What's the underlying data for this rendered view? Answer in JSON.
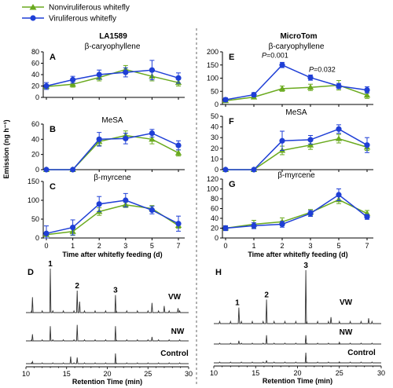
{
  "legend": {
    "nonviruliferous": "Nonviruliferous whitefly",
    "viruliferous": "Viruliferous whitefly"
  },
  "colors": {
    "nonviruliferous": "#6aaa1e",
    "viruliferous": "#1f3fd6",
    "chromatogram": "#333333"
  },
  "groups": {
    "left": "LA1589",
    "right": "MicroTom"
  },
  "ylabel": "Emission (ng h⁻¹)",
  "xlabel": "Time after whitefly feeding (d)",
  "chart_data": [
    {
      "type": "line",
      "panel": "A",
      "compound": "β-caryophyllene",
      "group": "LA1589",
      "categories": [
        "0",
        "1",
        "2",
        "3",
        "5",
        "7"
      ],
      "ylim": [
        0,
        80
      ],
      "yticks": [
        0,
        20,
        40,
        60,
        80
      ],
      "series": [
        {
          "name": "Nonviruliferous whitefly",
          "values": [
            19,
            23,
            35,
            49,
            37,
            26
          ],
          "errors": [
            3,
            5,
            6,
            7,
            8,
            6
          ]
        },
        {
          "name": "Viruliferous whitefly",
          "values": [
            20,
            31,
            40,
            44,
            48,
            34
          ],
          "errors": [
            6,
            6,
            8,
            8,
            17,
            9
          ]
        }
      ]
    },
    {
      "type": "line",
      "panel": "B",
      "compound": "MeSA",
      "group": "LA1589",
      "categories": [
        "0",
        "1",
        "2",
        "3",
        "5",
        "7"
      ],
      "ylim": [
        0,
        60
      ],
      "yticks": [
        0,
        20,
        40,
        60
      ],
      "series": [
        {
          "name": "Nonviruliferous whitefly",
          "values": [
            0,
            0,
            37,
            45,
            40,
            22
          ],
          "errors": [
            0,
            0,
            5,
            6,
            6,
            4
          ]
        },
        {
          "name": "Viruliferous whitefly",
          "values": [
            0,
            0,
            40,
            41,
            48,
            32
          ],
          "errors": [
            0,
            0,
            9,
            7,
            5,
            6
          ]
        }
      ]
    },
    {
      "type": "line",
      "panel": "C",
      "compound": "β-myrcene",
      "group": "LA1589",
      "categories": [
        "0",
        "1",
        "2",
        "3",
        "5",
        "7"
      ],
      "ylim": [
        0,
        150
      ],
      "yticks": [
        0,
        50,
        100,
        150
      ],
      "series": [
        {
          "name": "Nonviruliferous whitefly",
          "values": [
            9,
            17,
            70,
            88,
            78,
            33
          ],
          "errors": [
            5,
            10,
            10,
            7,
            8,
            7
          ]
        },
        {
          "name": "Viruliferous whitefly",
          "values": [
            12,
            28,
            90,
            100,
            74,
            38
          ],
          "errors": [
            20,
            20,
            20,
            18,
            10,
            20
          ]
        }
      ]
    },
    {
      "type": "line",
      "panel": "E",
      "compound": "β-caryophyllene",
      "group": "MicroTom",
      "categories": [
        "0",
        "1",
        "2",
        "3",
        "5",
        "7"
      ],
      "ylim": [
        0,
        200
      ],
      "yticks": [
        0,
        50,
        100,
        150,
        200
      ],
      "annotations": [
        {
          "text": "P=0.001",
          "x": "2"
        },
        {
          "text": "P=0.032",
          "x": "3"
        }
      ],
      "series": [
        {
          "name": "Nonviruliferous whitefly",
          "values": [
            14,
            28,
            60,
            65,
            73,
            35
          ],
          "errors": [
            4,
            6,
            10,
            12,
            18,
            12
          ]
        },
        {
          "name": "Viruliferous whitefly",
          "values": [
            18,
            37,
            150,
            102,
            70,
            55
          ],
          "errors": [
            7,
            8,
            10,
            10,
            10,
            12
          ]
        }
      ]
    },
    {
      "type": "line",
      "panel": "F",
      "compound": "MeSA",
      "group": "MicroTom",
      "categories": [
        "0",
        "1",
        "2",
        "3",
        "5",
        "7"
      ],
      "ylim": [
        0,
        50
      ],
      "yticks": [
        0,
        10,
        20,
        30,
        40,
        50
      ],
      "series": [
        {
          "name": "Nonviruliferous whitefly",
          "values": [
            0,
            0,
            18,
            23,
            29,
            21
          ],
          "errors": [
            0,
            0,
            4,
            4,
            4,
            3
          ]
        },
        {
          "name": "Viruliferous whitefly",
          "values": [
            0,
            0,
            27,
            28,
            38,
            23
          ],
          "errors": [
            0,
            0,
            9,
            4,
            4,
            7
          ]
        }
      ]
    },
    {
      "type": "line",
      "panel": "G",
      "compound": "β-myrcene",
      "group": "MicroTom",
      "categories": [
        "0",
        "1",
        "2",
        "3",
        "5",
        "7"
      ],
      "ylim": [
        0,
        120
      ],
      "yticks": [
        0,
        20,
        40,
        60,
        80,
        100,
        120
      ],
      "series": [
        {
          "name": "Nonviruliferous whitefly",
          "values": [
            20,
            28,
            33,
            52,
            78,
            50
          ],
          "errors": [
            4,
            8,
            8,
            6,
            8,
            6
          ]
        },
        {
          "name": "Viruliferous whitefly",
          "values": [
            20,
            25,
            28,
            50,
            88,
            43
          ],
          "errors": [
            5,
            6,
            6,
            6,
            12,
            5
          ]
        }
      ]
    },
    {
      "type": "line",
      "panel": "D",
      "subtype": "chromatogram",
      "xlabel": "Retention Time (min)",
      "xlim": [
        10,
        30
      ],
      "xticks": [
        10,
        15,
        20,
        25,
        30
      ],
      "traces": [
        "VW",
        "NW",
        "Control"
      ],
      "peak_labels": [
        {
          "text": "1",
          "rt": 13.0
        },
        {
          "text": "2",
          "rt": 16.3
        },
        {
          "text": "3",
          "rt": 21.0
        }
      ],
      "peaks": {
        "VW": [
          [
            10.8,
            0.35
          ],
          [
            13.0,
            1.0
          ],
          [
            16.3,
            0.5
          ],
          [
            16.6,
            0.25
          ],
          [
            21.0,
            0.4
          ],
          [
            25.5,
            0.22
          ],
          [
            27.0,
            0.15
          ],
          [
            28.7,
            0.1
          ]
        ],
        "NW": [
          [
            10.8,
            0.25
          ],
          [
            13.0,
            0.55
          ],
          [
            16.3,
            0.6
          ],
          [
            21.0,
            0.55
          ],
          [
            25.5,
            0.15
          ]
        ],
        "Control": [
          [
            10.8,
            0.1
          ],
          [
            15.5,
            0.35
          ],
          [
            16.3,
            0.3
          ],
          [
            21.0,
            0.5
          ]
        ]
      }
    },
    {
      "type": "line",
      "panel": "H",
      "subtype": "chromatogram",
      "xlabel": "Retention Time (min)",
      "xlim": [
        10,
        30
      ],
      "xticks": [
        10,
        15,
        20,
        25,
        30
      ],
      "traces": [
        "VW",
        "NW",
        "Control"
      ],
      "peak_labels": [
        {
          "text": "1",
          "rt": 13.0
        },
        {
          "text": "2",
          "rt": 16.3
        },
        {
          "text": "3",
          "rt": 21.0
        }
      ],
      "peaks": {
        "VW": [
          [
            13.0,
            0.3
          ],
          [
            16.3,
            0.45
          ],
          [
            21.0,
            1.0
          ],
          [
            24.0,
            0.12
          ],
          [
            28.5,
            0.1
          ]
        ],
        "NW": [
          [
            13.0,
            0.15
          ],
          [
            16.3,
            0.4
          ],
          [
            21.0,
            0.4
          ],
          [
            25.0,
            0.08
          ]
        ],
        "Control": [
          [
            16.3,
            0.12
          ],
          [
            21.0,
            0.5
          ],
          [
            25.0,
            0.05
          ]
        ]
      }
    }
  ]
}
